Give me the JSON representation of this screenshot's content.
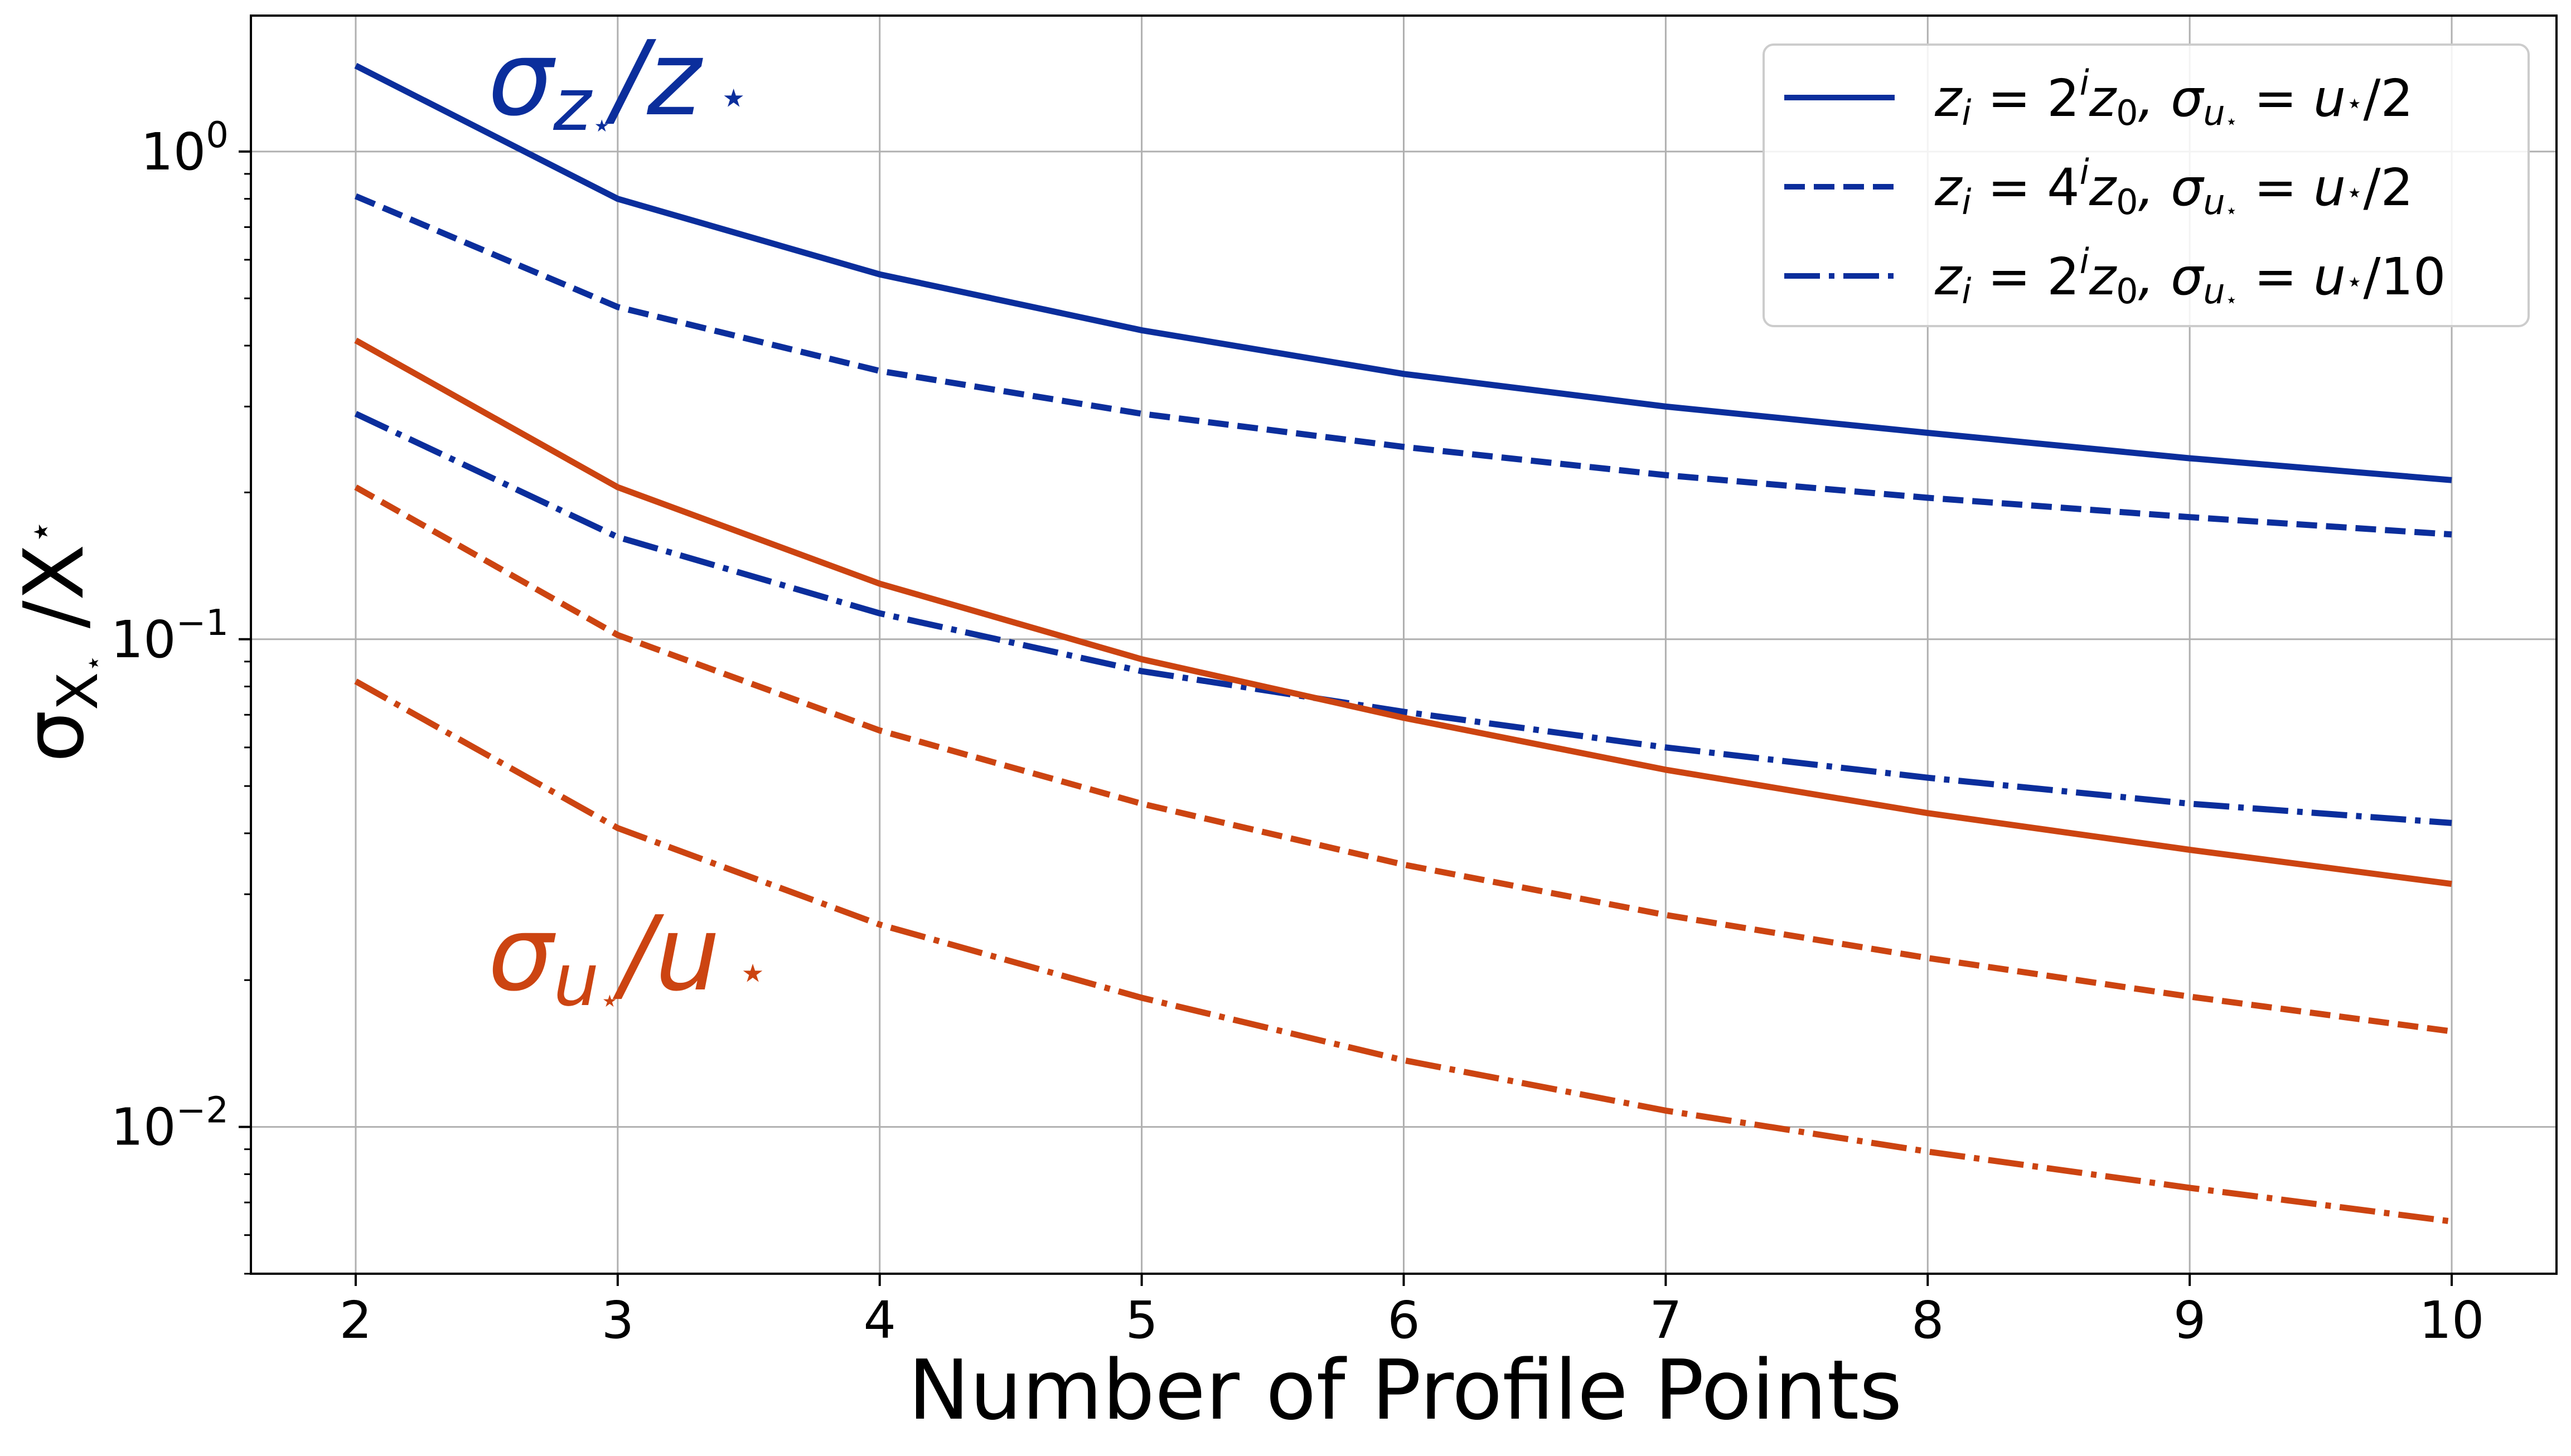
{
  "chart_data": {
    "type": "line",
    "xlabel": "Number of Profile Points",
    "ylabel": "σX⋆ /X⋆",
    "ylabel_parts": {
      "main": "σ",
      "sub": "X",
      "subsub": "⋆",
      "slash": " /X",
      "star": "⋆"
    },
    "yscale": "log",
    "xlim": [
      1.6,
      10.4
    ],
    "ylim": [
      0.005,
      1.9
    ],
    "x": [
      2,
      3,
      4,
      5,
      6,
      7,
      8,
      9,
      10
    ],
    "x_ticks": [
      "2",
      "3",
      "4",
      "5",
      "6",
      "7",
      "8",
      "9",
      "10"
    ],
    "y_ticks": [
      {
        "base": "10",
        "exp": "0",
        "value": 1
      },
      {
        "base": "10",
        "exp": "−1",
        "value": 0.1
      },
      {
        "base": "10",
        "exp": "−2",
        "value": 0.01
      }
    ],
    "grid": true,
    "legend_placement": "top-right",
    "legend": [
      {
        "parts": [
          "z",
          "i",
          " = 2",
          "i",
          "z",
          "0",
          ", σ",
          "u",
          "⋆",
          " = u",
          "⋆",
          "/2"
        ],
        "style": "solid"
      },
      {
        "parts": [
          "z",
          "i",
          " = 4",
          "i",
          "z",
          "0",
          ", σ",
          "u",
          "⋆",
          " = u",
          "⋆",
          "/2"
        ],
        "style": "dashed"
      },
      {
        "parts": [
          "z",
          "i",
          " = 2",
          "i",
          "z",
          "0",
          ", σ",
          "u",
          "⋆",
          " = u",
          "⋆",
          "/10"
        ],
        "style": "dashdot"
      }
    ],
    "annotations": [
      {
        "id": "z",
        "parts": [
          "σ",
          "z",
          "⋆",
          "/z",
          "⋆"
        ],
        "color": "#0b2e9c",
        "position": "top-left"
      },
      {
        "id": "u",
        "parts": [
          "σ",
          "u",
          "⋆",
          "/u",
          "⋆"
        ],
        "color": "#cc4411",
        "position": "lower-left"
      }
    ],
    "colors": {
      "blue": "#0b2e9c",
      "orange": "#cc4411",
      "grid": "#b0b0b0"
    },
    "series": [
      {
        "group": "z",
        "style": "solid",
        "color": "#0b2e9c",
        "values": [
          1.5,
          0.8,
          0.56,
          0.43,
          0.35,
          0.3,
          0.265,
          0.235,
          0.212
        ]
      },
      {
        "group": "z",
        "style": "dashed",
        "color": "#0b2e9c",
        "values": [
          0.81,
          0.48,
          0.355,
          0.29,
          0.248,
          0.217,
          0.195,
          0.178,
          0.164
        ]
      },
      {
        "group": "z",
        "style": "dashdot",
        "color": "#0b2e9c",
        "values": [
          0.29,
          0.162,
          0.113,
          0.086,
          0.071,
          0.06,
          0.052,
          0.046,
          0.042
        ]
      },
      {
        "group": "u",
        "style": "solid",
        "color": "#cc4411",
        "values": [
          0.41,
          0.205,
          0.13,
          0.091,
          0.069,
          0.054,
          0.044,
          0.037,
          0.0315
        ]
      },
      {
        "group": "u",
        "style": "dashed",
        "color": "#cc4411",
        "values": [
          0.205,
          0.102,
          0.065,
          0.046,
          0.0345,
          0.0272,
          0.0222,
          0.0185,
          0.0157
        ]
      },
      {
        "group": "u",
        "style": "dashdot",
        "color": "#cc4411",
        "values": [
          0.082,
          0.041,
          0.026,
          0.0184,
          0.0137,
          0.0108,
          0.0089,
          0.0075,
          0.0064
        ]
      }
    ]
  }
}
